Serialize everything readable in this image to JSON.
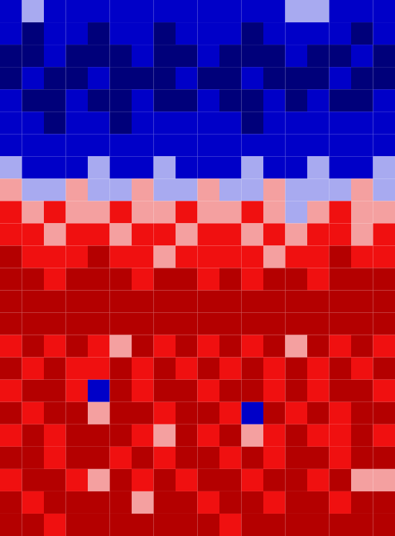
{
  "chart_data": {
    "type": "heatmap",
    "tick_labels": false,
    "colors": [
      "#00007a",
      "#0000c8",
      "#a8aaf0",
      "#f4a0a0",
      "#f01010",
      "#b40000"
    ],
    "cells": [
      [
        1,
        2,
        1,
        1,
        1,
        1,
        1,
        1,
        1,
        1,
        1,
        1,
        1,
        2,
        2,
        1,
        1,
        1
      ],
      [
        1,
        0,
        1,
        1,
        0,
        1,
        1,
        0,
        1,
        1,
        1,
        0,
        1,
        1,
        1,
        1,
        0,
        1
      ],
      [
        0,
        0,
        1,
        0,
        0,
        0,
        1,
        0,
        0,
        1,
        0,
        0,
        0,
        1,
        0,
        0,
        1,
        0
      ],
      [
        0,
        1,
        0,
        0,
        1,
        0,
        0,
        0,
        1,
        0,
        0,
        1,
        0,
        0,
        0,
        1,
        0,
        0
      ],
      [
        1,
        0,
        0,
        1,
        0,
        0,
        1,
        0,
        0,
        1,
        0,
        0,
        1,
        0,
        1,
        0,
        0,
        1
      ],
      [
        1,
        1,
        0,
        1,
        1,
        0,
        1,
        1,
        1,
        1,
        1,
        0,
        1,
        1,
        1,
        1,
        1,
        1
      ],
      [
        1,
        1,
        1,
        1,
        1,
        1,
        1,
        1,
        1,
        1,
        1,
        1,
        1,
        1,
        1,
        1,
        1,
        1
      ],
      [
        2,
        1,
        1,
        1,
        2,
        1,
        1,
        2,
        1,
        1,
        1,
        2,
        1,
        1,
        2,
        1,
        1,
        2
      ],
      [
        3,
        2,
        2,
        3,
        2,
        2,
        3,
        2,
        2,
        3,
        2,
        2,
        3,
        2,
        2,
        2,
        3,
        2
      ],
      [
        4,
        3,
        4,
        3,
        3,
        4,
        3,
        3,
        4,
        3,
        3,
        4,
        3,
        2,
        3,
        4,
        3,
        3
      ],
      [
        4,
        4,
        3,
        4,
        4,
        3,
        4,
        4,
        3,
        4,
        4,
        3,
        4,
        3,
        4,
        4,
        3,
        4
      ],
      [
        5,
        4,
        4,
        4,
        5,
        4,
        4,
        3,
        4,
        4,
        4,
        4,
        3,
        4,
        4,
        5,
        4,
        4
      ],
      [
        5,
        5,
        4,
        5,
        5,
        5,
        4,
        5,
        5,
        4,
        5,
        4,
        5,
        5,
        4,
        5,
        5,
        5
      ],
      [
        5,
        5,
        5,
        5,
        5,
        5,
        5,
        5,
        5,
        5,
        5,
        5,
        5,
        5,
        5,
        5,
        5,
        5
      ],
      [
        5,
        5,
        5,
        5,
        5,
        5,
        5,
        5,
        5,
        5,
        5,
        5,
        5,
        5,
        5,
        5,
        5,
        5
      ],
      [
        4,
        5,
        4,
        5,
        4,
        3,
        5,
        4,
        5,
        4,
        5,
        4,
        5,
        3,
        5,
        4,
        5,
        4
      ],
      [
        5,
        4,
        5,
        4,
        4,
        5,
        4,
        5,
        4,
        5,
        4,
        5,
        4,
        5,
        4,
        5,
        4,
        5
      ],
      [
        4,
        5,
        5,
        4,
        1,
        5,
        4,
        5,
        5,
        4,
        5,
        5,
        4,
        5,
        4,
        5,
        5,
        4
      ],
      [
        5,
        4,
        5,
        5,
        3,
        5,
        5,
        4,
        5,
        5,
        4,
        1,
        5,
        4,
        5,
        4,
        5,
        5
      ],
      [
        4,
        5,
        4,
        5,
        5,
        5,
        4,
        3,
        5,
        4,
        5,
        3,
        4,
        5,
        4,
        4,
        5,
        4
      ],
      [
        5,
        5,
        4,
        5,
        5,
        4,
        5,
        4,
        5,
        5,
        4,
        5,
        4,
        5,
        5,
        4,
        5,
        5
      ],
      [
        4,
        5,
        5,
        4,
        3,
        5,
        4,
        5,
        4,
        5,
        5,
        4,
        5,
        5,
        4,
        5,
        3,
        3
      ],
      [
        5,
        4,
        5,
        5,
        5,
        5,
        3,
        5,
        5,
        4,
        5,
        5,
        4,
        5,
        5,
        4,
        5,
        5
      ],
      [
        5,
        5,
        4,
        5,
        5,
        5,
        5,
        5,
        5,
        5,
        4,
        5,
        5,
        5,
        5,
        5,
        5,
        5
      ]
    ]
  }
}
